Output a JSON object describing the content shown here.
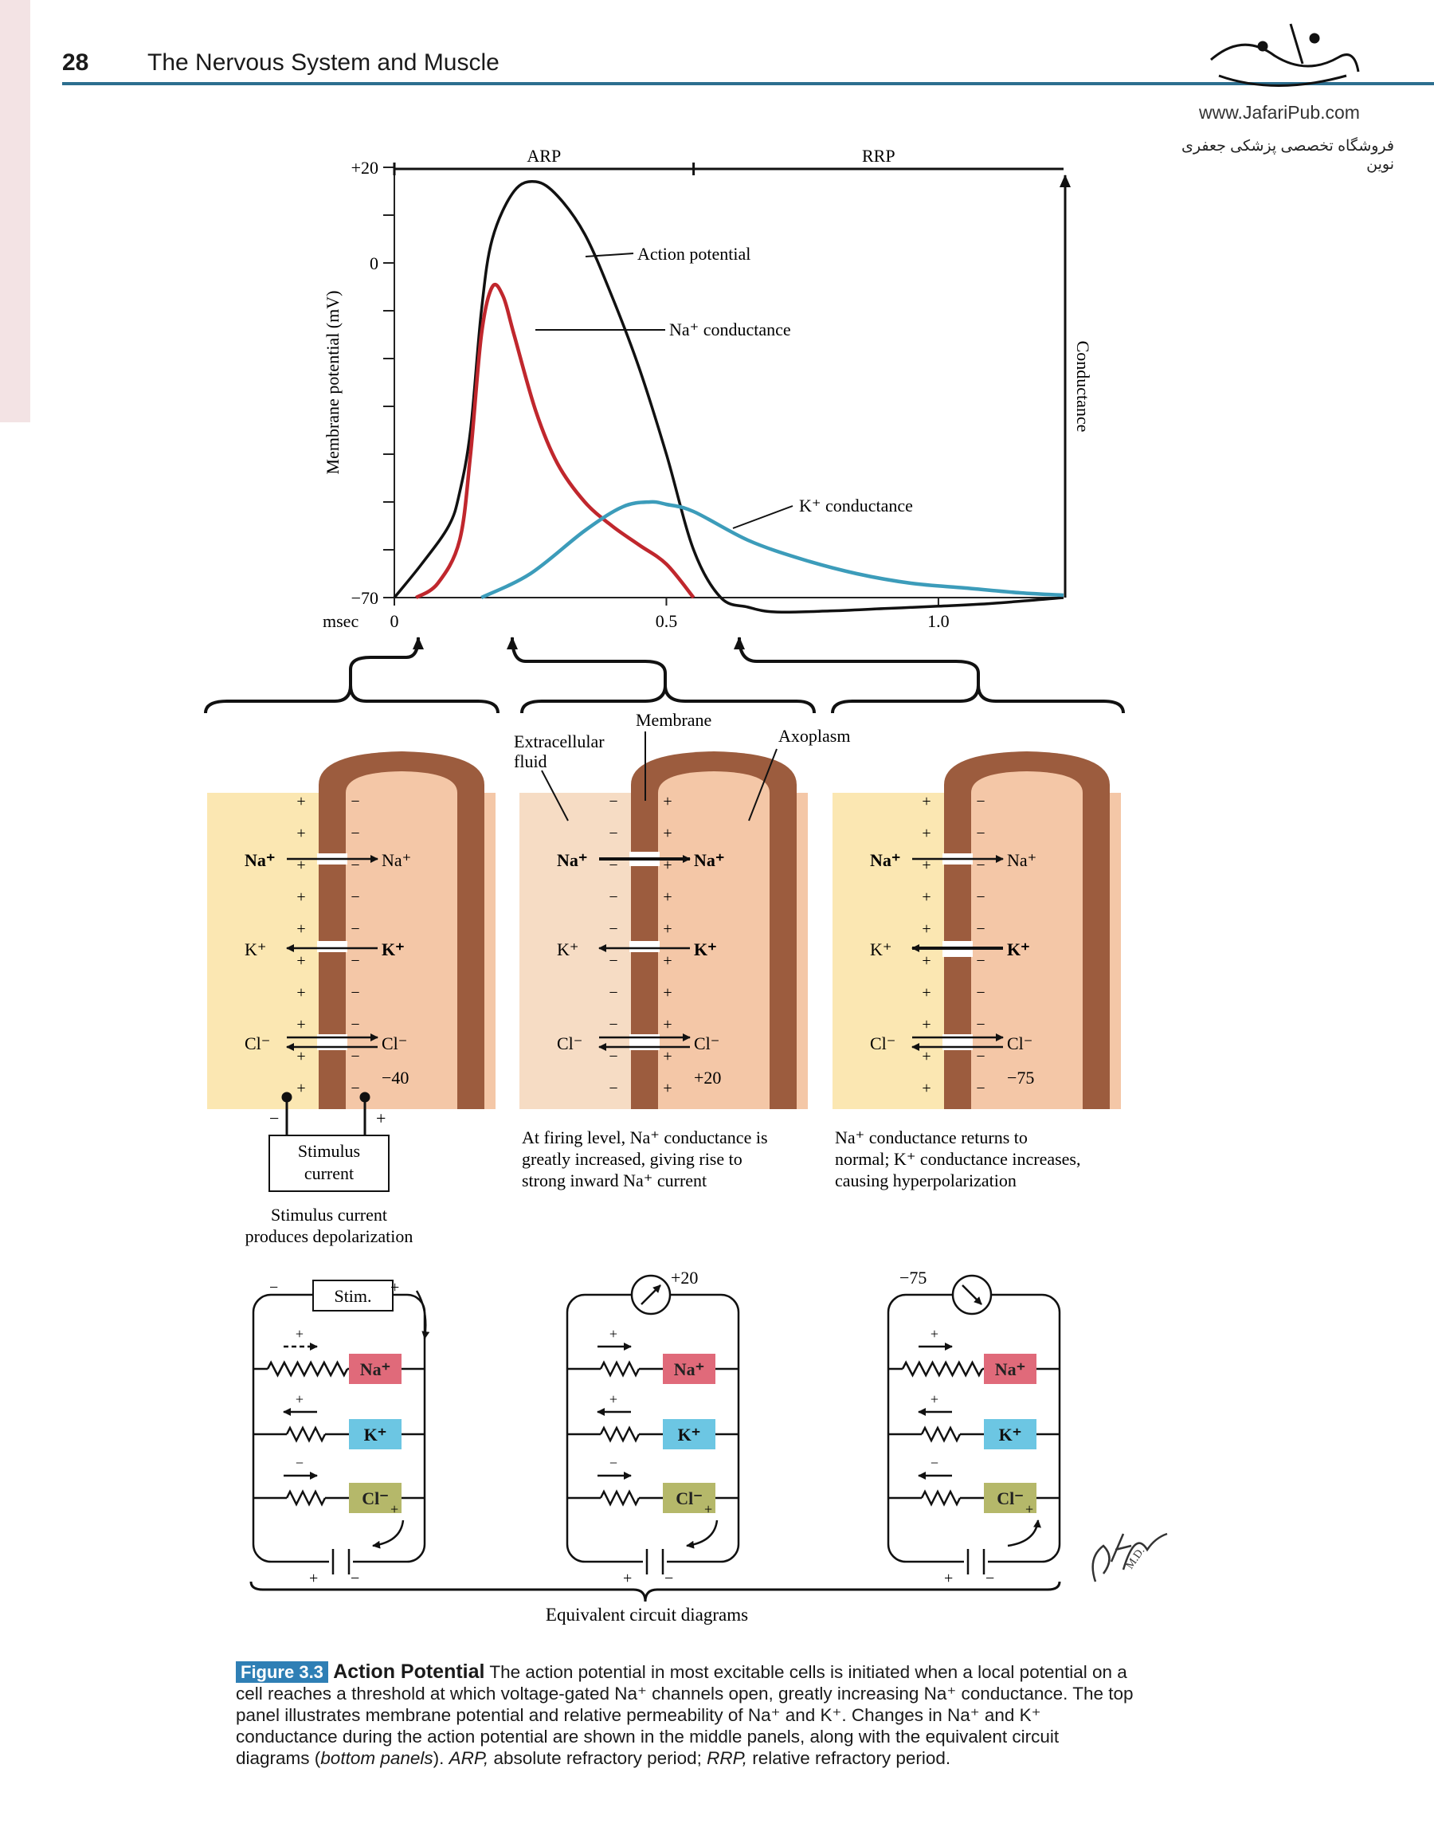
{
  "header": {
    "page_number": "28",
    "running_title": "The Nervous System and Muscle",
    "publisher_url": "www.JafariPub.com",
    "publisher_tagline": "فروشگاه تخصصی پزشکی جعفری نوین"
  },
  "chart_data": {
    "type": "line",
    "ylabel": "Membrane potential (mV)",
    "y2label": "Conductance",
    "xlabel": "msec",
    "y_ticks": [
      "+20",
      "0",
      "−70"
    ],
    "x_ticks": [
      "0",
      "0.5",
      "1.0"
    ],
    "ylim": [
      -70,
      20
    ],
    "xlim": [
      0,
      1.23
    ],
    "periods": [
      {
        "label": "ARP",
        "start": 0,
        "end": 0.55
      },
      {
        "label": "RRP",
        "start": 0.55,
        "end": 1.23
      }
    ],
    "series": [
      {
        "name": "Action potential",
        "color": "#111111",
        "x": [
          0,
          0.05,
          0.1,
          0.12,
          0.14,
          0.16,
          0.18,
          0.22,
          0.26,
          0.3,
          0.35,
          0.4,
          0.45,
          0.5,
          0.55,
          0.6,
          0.65,
          0.7,
          0.8,
          0.9,
          1.0,
          1.1,
          1.23
        ],
        "y": [
          -70,
          -63,
          -55,
          -48,
          -35,
          -10,
          5,
          15,
          17,
          14,
          6,
          -7,
          -22,
          -40,
          -60,
          -70,
          -72,
          -73,
          -72.8,
          -72.3,
          -71.8,
          -71.2,
          -70
        ]
      },
      {
        "name": "Na⁺ conductance",
        "color": "#c0272d",
        "x": [
          0.04,
          0.08,
          0.12,
          0.14,
          0.16,
          0.18,
          0.2,
          0.22,
          0.26,
          0.3,
          0.35,
          0.4,
          0.45,
          0.5,
          0.55
        ],
        "y": [
          -70,
          -67,
          -58,
          -40,
          -15,
          -5,
          -7,
          -15,
          -31,
          -42,
          -50,
          -55,
          -59,
          -63,
          -70
        ]
      },
      {
        "name": "K⁺ conductance",
        "color": "#3c9cba",
        "x": [
          0.16,
          0.25,
          0.35,
          0.42,
          0.47,
          0.5,
          0.55,
          0.65,
          0.75,
          0.85,
          0.95,
          1.05,
          1.15,
          1.23
        ],
        "y": [
          -70,
          -65,
          -56,
          -51,
          -50,
          -50.5,
          -52,
          -58,
          -62,
          -65,
          -67,
          -68,
          -69,
          -69.5
        ]
      }
    ]
  },
  "panels": {
    "labels": {
      "membrane": "Membrane",
      "extracellular": "Extracellular\nfluid",
      "axoplasm": "Axoplasm",
      "na": "Na⁺",
      "k": "K⁺",
      "cl": "Cl⁻",
      "plus": "+",
      "minus": "−"
    },
    "items": [
      {
        "voltage": "−40",
        "caption": "Stimulus current\nproduces depolarization",
        "stimulus_box": "Stimulus\ncurrent"
      },
      {
        "voltage": "+20",
        "caption": "At firing level, Na⁺ conductance is\ngreatly increased, giving rise to\nstrong inward Na⁺ current"
      },
      {
        "voltage": "−75",
        "caption": "Na⁺ conductance returns to\nnormal; K⁺ conductance increases,\ncausing hyperpolarization"
      }
    ]
  },
  "circuits": {
    "stim_label": "Stim.",
    "meter_values": [
      "+20",
      "−75"
    ],
    "caption": "Equivalent circuit diagrams",
    "na": "Na⁺",
    "k": "K⁺",
    "cl": "Cl⁻",
    "colors": {
      "na": "#e06a7a",
      "k": "#6cc6e3",
      "cl": "#b5b86a"
    }
  },
  "figure": {
    "label": "Figure 3.3",
    "title": "Action Potential",
    "caption_html": " The action potential in most excitable cells is initiated when a local potential on a cell reaches a threshold at which voltage-gated Na⁺ channels open, greatly increasing Na⁺ conductance. The top panel illustrates membrane potential and relative permeability of Na⁺ and K⁺. Changes in Na⁺ and K⁺ conductance during the action potential are shown in the middle panels, along with the equivalent circuit diagrams (",
    "caption_italic_1": "bottom panels",
    "caption_mid": "). ",
    "caption_italic_2": "ARP,",
    "caption_mid2": " absolute refractory period; ",
    "caption_italic_3": "RRP,",
    "caption_end": " relative refractory period."
  },
  "signature": "F. Netter M.D."
}
